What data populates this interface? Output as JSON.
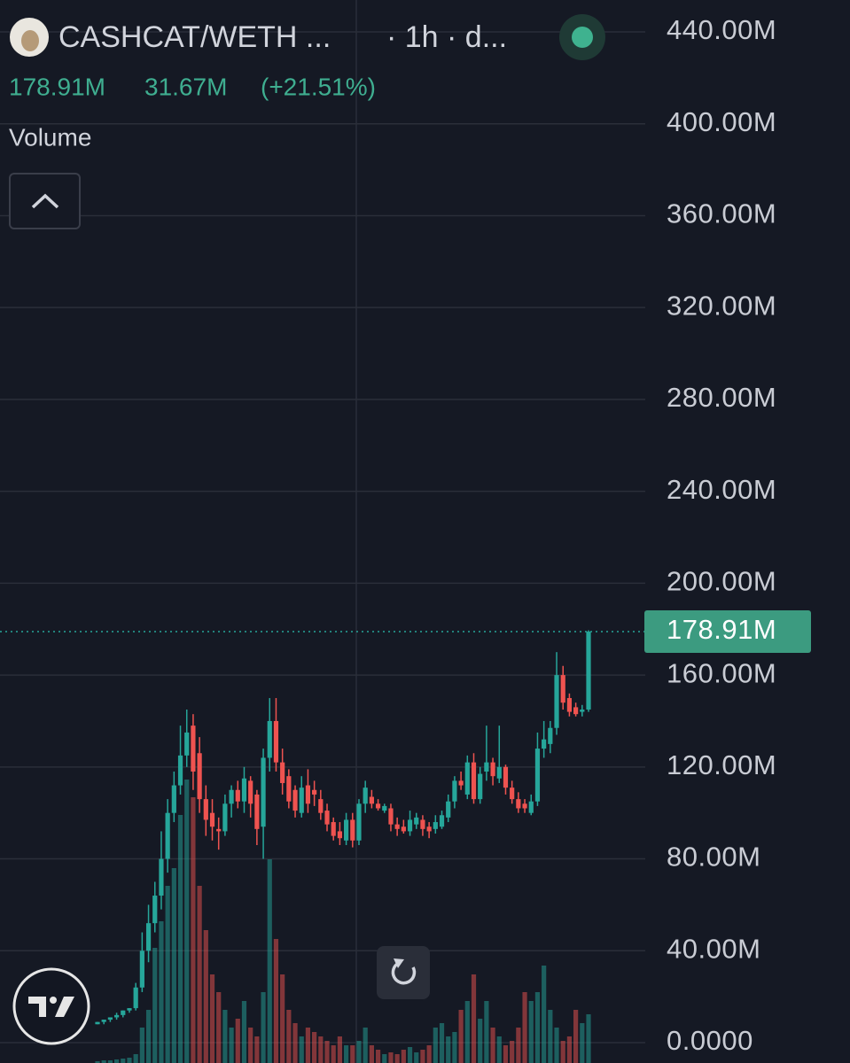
{
  "chart_data": {
    "type": "candlestick",
    "title": "CASHCAT/WETH ...",
    "interval": "· 1h · d...",
    "change": "31.67M",
    "change_pct": "(+21.51%)",
    "indicator": "Volume",
    "last_price": 178.91,
    "last_price_label": "178.91M",
    "up_color": "#26a69a",
    "down_color": "#ef5350",
    "grid": true,
    "ylim": [
      0,
      440
    ],
    "yticks": [
      {
        "value": 0,
        "label": "0.0000"
      },
      {
        "value": 40,
        "label": "40.00M"
      },
      {
        "value": 80,
        "label": "80.00M"
      },
      {
        "value": 120,
        "label": "120.00M"
      },
      {
        "value": 160,
        "label": "160.00M"
      },
      {
        "value": 200,
        "label": "200.00M"
      },
      {
        "value": 240,
        "label": "240.00M"
      },
      {
        "value": 280,
        "label": "280.00M"
      },
      {
        "value": 320,
        "label": "320.00M"
      },
      {
        "value": 360,
        "label": "360.00M"
      },
      {
        "value": 400,
        "label": "400.00M"
      },
      {
        "value": 440,
        "label": "440.00M"
      }
    ],
    "open": [
      8,
      9,
      10,
      11,
      12,
      14,
      15,
      24,
      40,
      52,
      64,
      80,
      100,
      112,
      125,
      138,
      126,
      106,
      100,
      93,
      92,
      104,
      110,
      105,
      114,
      108,
      94,
      124,
      140,
      122,
      116,
      110,
      100,
      112,
      110,
      106,
      101,
      96,
      92,
      88,
      97,
      88,
      104,
      107,
      104,
      101,
      102,
      95,
      94,
      92,
      95,
      97,
      94,
      93,
      94,
      98,
      105,
      114,
      108,
      122,
      106,
      118,
      122,
      115,
      120,
      111,
      106,
      104,
      100,
      105,
      128,
      130,
      137,
      160,
      150,
      146,
      144,
      145
    ],
    "high": [
      9,
      10,
      11,
      13,
      14,
      15,
      26,
      48,
      60,
      70,
      92,
      106,
      118,
      138,
      145,
      143,
      133,
      112,
      106,
      98,
      108,
      112,
      114,
      120,
      116,
      110,
      128,
      150,
      150,
      128,
      119,
      112,
      116,
      119,
      114,
      110,
      104,
      98,
      96,
      100,
      100,
      106,
      114,
      110,
      106,
      104,
      104,
      98,
      97,
      101,
      100,
      99,
      96,
      99,
      101,
      108,
      116,
      118,
      125,
      126,
      120,
      138,
      124,
      138,
      121,
      114,
      109,
      106,
      108,
      135,
      140,
      140,
      170,
      164,
      152,
      148,
      147,
      179.5
    ],
    "low": [
      8,
      8,
      9,
      10,
      11,
      13,
      14,
      22,
      35,
      48,
      58,
      74,
      96,
      108,
      120,
      110,
      100,
      90,
      88,
      84,
      90,
      98,
      102,
      100,
      98,
      86,
      80,
      118,
      118,
      108,
      102,
      98,
      98,
      100,
      103,
      97,
      92,
      88,
      86,
      86,
      85,
      86,
      100,
      102,
      101,
      100,
      92,
      90,
      91,
      90,
      93,
      90,
      89,
      91,
      93,
      96,
      102,
      110,
      106,
      104,
      104,
      114,
      112,
      113,
      108,
      104,
      100,
      100,
      99,
      103,
      124,
      126,
      134,
      145,
      142,
      142,
      142,
      144
    ],
    "close": [
      9,
      10,
      11,
      12,
      14,
      15,
      24,
      40,
      52,
      64,
      80,
      100,
      112,
      125,
      135,
      118,
      106,
      97,
      94,
      92,
      104,
      110,
      105,
      115,
      104,
      93,
      124,
      140,
      122,
      113,
      105,
      101,
      111,
      104,
      108,
      100,
      95,
      90,
      89,
      97,
      88,
      104,
      111,
      104,
      102,
      103,
      95,
      93,
      92,
      97,
      98,
      93,
      92,
      96,
      99,
      105,
      114,
      112,
      122,
      106,
      117,
      122,
      116,
      120,
      111,
      106,
      102,
      102,
      105,
      128,
      132,
      137,
      160,
      148,
      144,
      143,
      145,
      178.91
    ],
    "volume": [
      2,
      3,
      3,
      4,
      5,
      6,
      10,
      40,
      60,
      130,
      160,
      200,
      220,
      280,
      320,
      300,
      200,
      150,
      100,
      80,
      60,
      40,
      50,
      70,
      40,
      30,
      80,
      230,
      140,
      100,
      60,
      45,
      30,
      40,
      35,
      30,
      25,
      20,
      30,
      20,
      20,
      25,
      40,
      20,
      15,
      10,
      12,
      10,
      15,
      18,
      12,
      15,
      20,
      40,
      45,
      30,
      35,
      60,
      70,
      100,
      50,
      70,
      40,
      30,
      20,
      25,
      40,
      80,
      70,
      80,
      110,
      60,
      40,
      25,
      30,
      60,
      45,
      55
    ]
  }
}
